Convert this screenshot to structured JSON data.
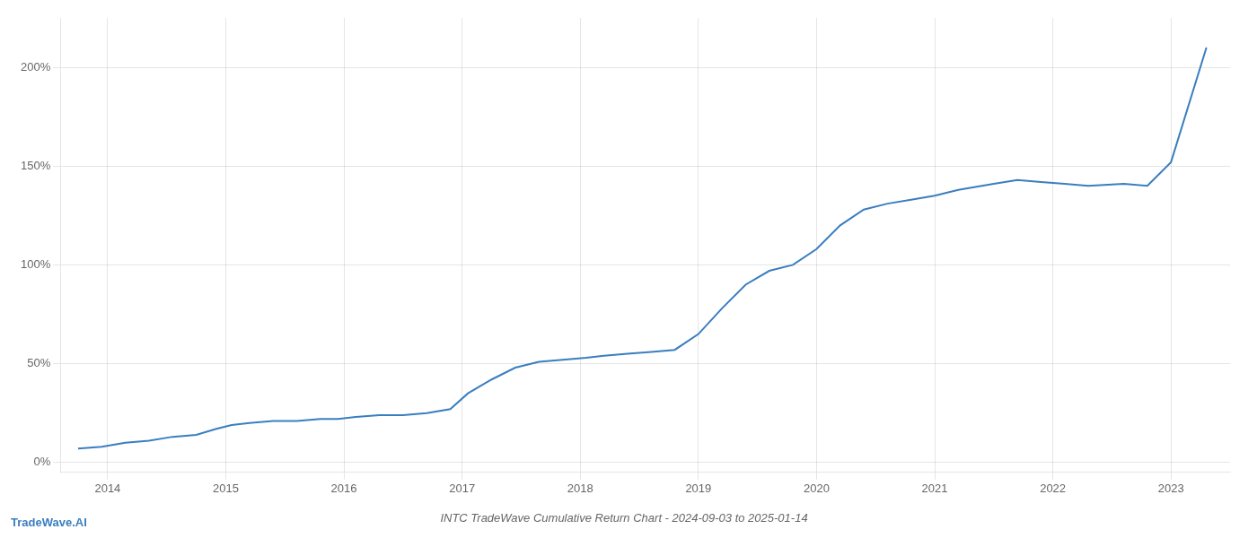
{
  "chart_data": {
    "type": "line",
    "title": "INTC TradeWave Cumulative Return Chart - 2024-09-03 to 2025-01-14",
    "annotations": [
      "TradeWave.AI"
    ],
    "x": [
      2013.75,
      2013.95,
      2014.15,
      2014.35,
      2014.55,
      2014.75,
      2014.92,
      2015.05,
      2015.2,
      2015.4,
      2015.6,
      2015.8,
      2015.95,
      2016.1,
      2016.3,
      2016.5,
      2016.7,
      2016.9,
      2017.05,
      2017.25,
      2017.45,
      2017.65,
      2017.85,
      2018.05,
      2018.2,
      2018.4,
      2018.6,
      2018.8,
      2019.0,
      2019.2,
      2019.4,
      2019.6,
      2019.8,
      2020.0,
      2020.2,
      2020.4,
      2020.6,
      2020.8,
      2021.0,
      2021.2,
      2021.5,
      2021.7,
      2021.9,
      2022.1,
      2022.3,
      2022.6,
      2022.8,
      2023.0,
      2023.3
    ],
    "values": [
      7,
      8,
      10,
      11,
      13,
      14,
      17,
      19,
      20,
      21,
      21,
      22,
      22,
      23,
      24,
      24,
      25,
      27,
      35,
      42,
      48,
      51,
      52,
      53,
      54,
      55,
      56,
      57,
      65,
      78,
      90,
      97,
      100,
      108,
      120,
      128,
      131,
      133,
      135,
      138,
      141,
      143,
      142,
      141,
      140,
      141,
      140,
      152,
      210
    ],
    "color": "#3a7ebf",
    "xlim": [
      2013.6,
      2023.5
    ],
    "xticks": [
      2014,
      2015,
      2016,
      2017,
      2018,
      2019,
      2020,
      2021,
      2022,
      2023
    ],
    "ylim": [
      -5,
      225
    ],
    "yticks": [
      {
        "value": 0,
        "label": "0%"
      },
      {
        "value": 50,
        "label": "50%"
      },
      {
        "value": 100,
        "label": "100%"
      },
      {
        "value": 150,
        "label": "150%"
      },
      {
        "value": 200,
        "label": "200%"
      }
    ],
    "grid": true
  }
}
